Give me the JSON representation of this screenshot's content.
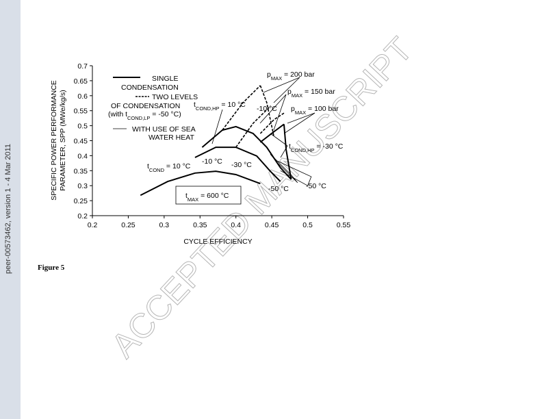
{
  "sidebar": {
    "text": "peer-00573462, version 1 - 4 Mar 2011"
  },
  "watermark": {
    "text": "ACCEPTED MANUSCRIPT"
  },
  "caption": {
    "text": "Figure 5"
  },
  "chart_data": {
    "type": "line",
    "x_label": "CYCLE EFFICIENCY",
    "y_label": [
      "SPECIFIC POWER PERFORMANCE",
      "PARAMETER, SPP (MWe/kg/s)"
    ],
    "xlim": [
      0.2,
      0.55
    ],
    "xticks": [
      0.2,
      0.25,
      0.3,
      0.35,
      0.4,
      0.45,
      0.5,
      0.55
    ],
    "ylim": [
      0.2,
      0.7
    ],
    "yticks": [
      0.2,
      0.25,
      0.3,
      0.35,
      0.4,
      0.45,
      0.5,
      0.55,
      0.6,
      0.65,
      0.7
    ],
    "grid": false,
    "legend": [
      {
        "lines": [
          {
            "text": "SINGLE"
          },
          {
            "text": "CONDENSATION"
          }
        ],
        "style": "solid"
      },
      {
        "lines": [
          {
            "text": "TWO LEVELS"
          },
          {
            "text": "OF CONDENSATION"
          },
          {
            "text": "(with t",
            "sub": "COND,LP",
            "rest": " = -50 °C)"
          }
        ],
        "style": "dashed"
      },
      {
        "lines": [
          {
            "text": "WITH USE OF SEA"
          },
          {
            "text": "WATER HEAT"
          }
        ],
        "style": "thin"
      }
    ],
    "series": [
      {
        "style": "solid",
        "color": "#000000",
        "x": [
          0.267,
          0.305,
          0.343,
          0.372,
          0.4,
          0.434
        ],
        "values": [
          0.268,
          0.314,
          0.342,
          0.348,
          0.337,
          0.307
        ]
      },
      {
        "style": "solid",
        "color": "#000000",
        "x": [
          0.343,
          0.372,
          0.4,
          0.429,
          0.448,
          0.462
        ],
        "values": [
          0.394,
          0.428,
          0.428,
          0.399,
          0.348,
          0.314
        ]
      },
      {
        "style": "solid",
        "color": "#000000",
        "x": [
          0.353,
          0.381,
          0.4,
          0.424,
          0.443,
          0.462,
          0.477
        ],
        "values": [
          0.428,
          0.485,
          0.497,
          0.474,
          0.428,
          0.36,
          0.321
        ]
      },
      {
        "style": "solid",
        "color": "#000000",
        "x": [
          0.434,
          0.453,
          0.467
        ],
        "values": [
          0.445,
          0.48,
          0.505
        ]
      },
      {
        "style": "solid",
        "color": "#000000",
        "x": [
          0.467,
          0.47,
          0.477
        ],
        "values": [
          0.505,
          0.42,
          0.321
        ]
      },
      {
        "style": "dashed",
        "color": "#000000",
        "x": [
          0.381,
          0.41,
          0.434
        ],
        "values": [
          0.485,
          0.577,
          0.634
        ]
      },
      {
        "style": "dashed",
        "color": "#000000",
        "x": [
          0.434,
          0.443,
          0.453
        ],
        "values": [
          0.634,
          0.577,
          0.463
        ]
      },
      {
        "style": "dashed",
        "color": "#000000",
        "x": [
          0.4,
          0.424,
          0.448
        ],
        "values": [
          0.428,
          0.508,
          0.565
        ]
      },
      {
        "style": "dashed",
        "color": "#000000",
        "x": [
          0.434,
          0.453,
          0.467
        ],
        "values": [
          0.474,
          0.52,
          0.542
        ]
      },
      {
        "style": "thin",
        "color": "#000000",
        "x": [
          0.448,
          0.477,
          0.486,
          0.458,
          0.448
        ],
        "values": [
          0.405,
          0.336,
          0.31,
          0.376,
          0.405
        ]
      },
      {
        "style": "thin",
        "color": "#000000",
        "x": [
          0.458,
          0.505,
          0.5,
          0.462
        ],
        "values": [
          0.382,
          0.33,
          0.3,
          0.35
        ]
      }
    ],
    "annotations": [
      {
        "text": "p",
        "sub": "MAX",
        "rest": " = 200 bar"
      },
      {
        "text": "p",
        "sub": "MAX",
        "rest": " = 150 bar"
      },
      {
        "text": "p",
        "sub": "MAX",
        "rest": " = 100 bar"
      },
      {
        "text": "t",
        "sub": "COND,HP",
        "rest": " = 10 °C"
      },
      {
        "text": "-10 °C"
      },
      {
        "text": "t",
        "sub": "COND,HP",
        "rest": " = -30 °C"
      },
      {
        "text": "t",
        "sub": "COND",
        "rest": " = 10 °C"
      },
      {
        "text": "-10 °C"
      },
      {
        "text": "-30 °C"
      },
      {
        "text": "-50 °C"
      },
      {
        "text": "-50 °C"
      },
      {
        "text": "t",
        "sub": "MAX",
        "rest": " = 600 °C"
      }
    ]
  }
}
